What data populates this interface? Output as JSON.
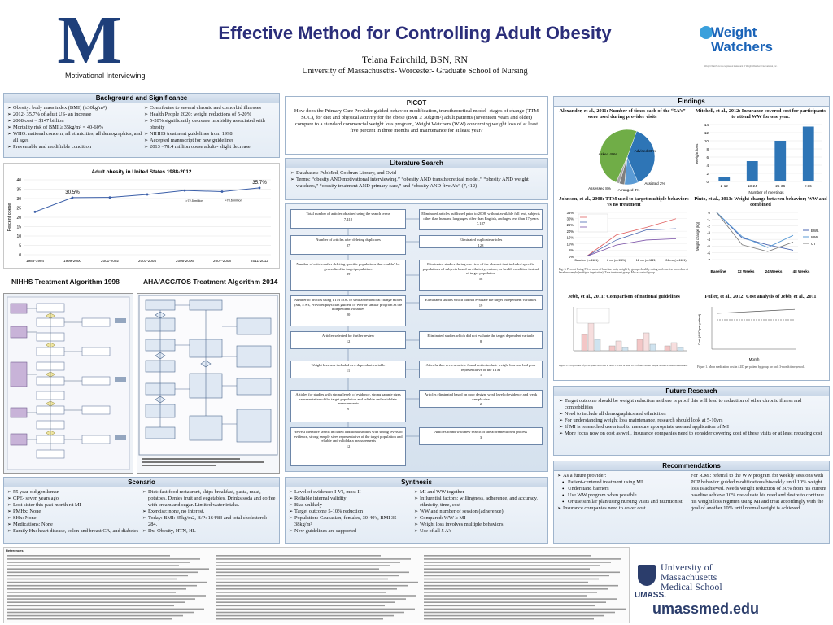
{
  "header": {
    "logo_letter": "M",
    "logo_caption": "Motivational Interviewing",
    "title": "Effective Method for Controlling Adult Obesity",
    "author": "Telana Fairchild, BSN, RN",
    "affiliation": "University of Massachusetts- Worcester- Graduate School of Nursing",
    "ww_logo_line1": "Weight",
    "ww_logo_line2": "Watchers",
    "ww_fine": "Weight Watchers is a registered trademark of Weight Watchers International, Inc."
  },
  "background": {
    "title": "Background and Significance",
    "left": [
      "Obesity:  body mass index (BMI) (≥30kg/m²)",
      "2012- 35.7% of adult US- an increase",
      "2008 cost = $147 billion",
      "Mortality risk of BMI ≥ 35kg/m² = 40-60%",
      "WHO: national concern, all ethnicities, all demographics, and all ages",
      "Preventable and modifiable condition"
    ],
    "right": [
      "Contributes to several chronic and comorbid illnesses",
      "Health People 2020: weight reductions of 5-20%",
      "5-20% significantly decrease morbidity associated with obesity",
      "NIHHS treatment guidelines from 1998",
      "Accepted manuscript for new guidelines",
      "2013 =78.4 million obese adults- slight decrease"
    ]
  },
  "obesity_chart": {
    "title": "Adult obesity in United States 1988-2012",
    "ylabel": "Percent obese",
    "annotations": [
      "30.5%",
      "35.7%",
      ">72.5 million",
      ">78.6 million"
    ]
  },
  "chart_data": {
    "type": "line",
    "title": "Adult obesity in United States 1988-2012",
    "ylabel": "Percent obese",
    "categories": [
      "1988-1994",
      "1999-2000",
      "2001-2002",
      "2003-2004",
      "2005-2006",
      "2007-2008",
      "2011-2012"
    ],
    "values": [
      22.9,
      30.5,
      30.6,
      32.2,
      34.3,
      33.7,
      35.7
    ],
    "ylim": [
      0,
      40
    ],
    "yticks": [
      "0",
      "5",
      "10",
      "15",
      "20",
      "25",
      "30",
      "35",
      "40"
    ]
  },
  "algorithms": {
    "left_title": "NIHHS Treatment Algorithm 1998",
    "right_title": "AHA/ACC/TOS Treatment Algorithm 2014"
  },
  "picot": {
    "title": "PICOT",
    "text": "How does the Primary Care Provider guided behavior modification, transtheoretical model- stages of change (TTM SOC), for diet and physical activity for the obese (BMI ≥ 30kg/m²) adult patients (seventeen years and older) compare to a standard commercial weight loss program, Weight Watchers (WW) concerning weight loss of at least five percent in three months and maintenance for at least year?"
  },
  "literature": {
    "title": "Literature Search",
    "items": [
      "Databases:  PubMed, Cochran Library, and Ovid",
      "Terms: “obesity AND motivational interviewing,” “obesity AND transtheoretical model,” “obesity AND weight watchers,” “obesity treatment AND primary care,” and “obesity AND five A’s”   (7,412)"
    ]
  },
  "flow": {
    "left": [
      {
        "text": "Total number of articles obtained using the search terms",
        "n": "7,412"
      },
      {
        "text": "Number of articles after deleting duplicates",
        "n": "87"
      },
      {
        "text": "Number of articles after deleting specific populations that couldn't be generalized to target population.",
        "n": "39"
      },
      {
        "text": "Number of articles using TTM SOC or similar behavioral change model (MI, 5 A's, Provider/physician guided, or WW or similar program as the independent variables",
        "n": "20"
      },
      {
        "text": "Articles selected for further review",
        "n": "12"
      },
      {
        "text": "Weight loss was included as a dependent variable",
        "n": "11"
      },
      {
        "text": "Articles for studies with strong levels of evidence, strong sample sizes representative of the target population and reliable and valid data measurements",
        "n": "9"
      },
      {
        "text": "Newest literature search included additional studies with strong levels of evidence, strong sample sizes representative of the target population and reliable and valid data measurements",
        "n": "12"
      }
    ],
    "right": [
      {
        "text": "Eliminated articles published prior to 2008, without available full text, subjects other than humans, languages other than English, and ages less than 17 years",
        "n": "7,187"
      },
      {
        "text": "Eliminated duplicate articles",
        "n": "128"
      },
      {
        "text": "Eliminated studies during a review of the abstract that included specific populations of subjects based on ethnicity, culture, or health condition instead of target population",
        "n": "58"
      },
      {
        "text": "Eliminated studies which did not evaluate the target independent variables",
        "n": "19"
      },
      {
        "text": "Eliminated studies which did not evaluate the target dependent variable",
        "n": "8"
      },
      {
        "text": "After further review article found not to include weight loss and had poor representative of the TTM",
        "n": "1"
      },
      {
        "text": "Articles eliminated based on poor design, weak level of evidence and weak sample size",
        "n": "2"
      },
      {
        "text": "Articles found with new search of the aforementioned process",
        "n": "3"
      }
    ]
  },
  "findings": {
    "title": "Findings",
    "alexander_title": "Alexander, et al., 2011: Number of times each of the “5A’s” were used during provider visits",
    "pie_labels": [
      "Advised 38%",
      "Assessed 8%",
      "Arranged 3%",
      "Assisted 2%",
      "Asked 49%"
    ],
    "pie_values": [
      38,
      8,
      3,
      2,
      49
    ],
    "mitchell_title": "Mitchell, et al., 2012:  Insurance covered cost for participants to attend WW for  one year.",
    "mitchell_categories": [
      "2-12",
      "13-24",
      "25-36",
      ">36"
    ],
    "mitchell_values": [
      1,
      5,
      10,
      13.5
    ],
    "mitchell_xlabel": "Number of meetings",
    "mitchell_ylabel": "Weight loss",
    "mitchell_yticks": [
      "0",
      "2",
      "4",
      "6",
      "8",
      "10",
      "12",
      "14"
    ],
    "johnson_title": "Johnson, et al., 2008:  TTM used to target multiple behaviors vs no treatment",
    "johnson_x": [
      "Baseline (n=1121)",
      "6 mo (n=1121)",
      "12 mo (n=1121)",
      "24 mo (n=1121)"
    ],
    "johnson_yticks": [
      "0%",
      "5%",
      "10%",
      "15%",
      "20%",
      "25%",
      "30%",
      "35%"
    ],
    "johnson_caption": "Fig. 6. Percent losing 5% or more of baseline body weight by group—healthy eating and exercise procedure at baseline sample (multiple imputation). Tx = treatment group, Mw = control group.",
    "pinto_title": "Pinto, et al., 2013: Weight change between behavior; WW and combined",
    "pinto_legend": [
      "BWL",
      "WW",
      "CT"
    ],
    "pinto_x": [
      "Baseline",
      "12 Weeks",
      "24 Weeks",
      "48 Weeks"
    ],
    "pinto_ylabel": "Weight change (kg)",
    "pinto_yticks": [
      "0",
      "-1",
      "-2",
      "-3",
      "-4",
      "-5",
      "-6",
      "-7"
    ],
    "jebb_title": "Jebb, et al., 2011:  Comparison of national guidelines",
    "jebb_caption": "Figure 2: Proportions of participants who lost at least 5% and at least 10% of their initial weight at the 12-month assessment",
    "fuller_title": "Fuller, et al., 2012: Cost analysis of Jebb, et al., 2011",
    "fuller_xlabel": "Month",
    "fuller_ylabel": "Cost (AUD per patient)",
    "fuller_caption": "Figure 1.  Mean medication cost in AUD per patient by group for each 3-month time period."
  },
  "future": {
    "title": "Future Research",
    "items": [
      "Target outcome should be weight reduction as there is proof this will lead to reduction of other chronic illness and comorbidities",
      "Need to include all demographics and ethnicities",
      "For understanding weight loss maintenance, research should look at 5-10yrs",
      "If MI is researched use a tool to measure appropriate use and application of MI",
      "More focus now on cost as well, insurance companies need to consider covering cost of these visits or at least reducing cost"
    ]
  },
  "scenario": {
    "title": "Scenario",
    "left": [
      "55 year old gentleman",
      "CPE- seven years ago",
      "Lost sister this past month r/t MI",
      "PMHx: None",
      "SHx: None",
      "Medications: None",
      "Family Hx: heart disease, colon and breast CA, and diabetes"
    ],
    "right": [
      "Diet: fast food restaurant, skips breakfast, pasta, meat, potatoes.  Denies fruit and vegetables, Drinks soda and coffee with cream and sugar. Limited water intake.",
      "Exercise: none, no interest.",
      "Today:  BMI: 35kg/m2, B/P: 164/83 and total cholesterol:  284.",
      "Dx:  Obesity, HTN, HL"
    ]
  },
  "synthesis": {
    "title": "Synthesis",
    "left": [
      "Level of evidence: I-VI, most II",
      "Reliable internal validity",
      "Bias unlikely",
      "Target outcome 5-10% reduction",
      "Population: Caucasian, females, 30-40's, BMI 35-38kg/m²",
      "New guidelines are supported"
    ],
    "right": [
      "MI and WW together",
      "Influential factors: willingness, adherence, and accuracy, ethnicity, time, cost",
      "WW and number of session (adherence)",
      "Compared: WW ≥ MI",
      "Weight loss involves multiple behaviors",
      "Use of all 5 A's"
    ]
  },
  "recommendations": {
    "title": "Recommendations",
    "intro": "As a future provider:",
    "sub": [
      "Patient-centered treatment using MI",
      "Understand barriers",
      "Use WW program when possible",
      "Or use similar plan using nursing visits and nutritionist"
    ],
    "last": "Insurance companies need to  cover cost",
    "right_text": "For R.M.:  referral to the WW program for weekly sessions with PCP behavior guided modifications biweekly until 10% weight loss is achieved.  Needs weight reduction of 30% from his current baseline achieve 10% reevaluate his need and desire to continue his weight loss regimen using MI and treat accordingly with the goal of another 10% until normal weight is achieved."
  },
  "references": {
    "title": "References"
  },
  "umass": {
    "line1": "University of",
    "line2": "Massachusetts",
    "line3": "Medical School",
    "brand": "UMASS.",
    "url": "umassmed.edu"
  }
}
